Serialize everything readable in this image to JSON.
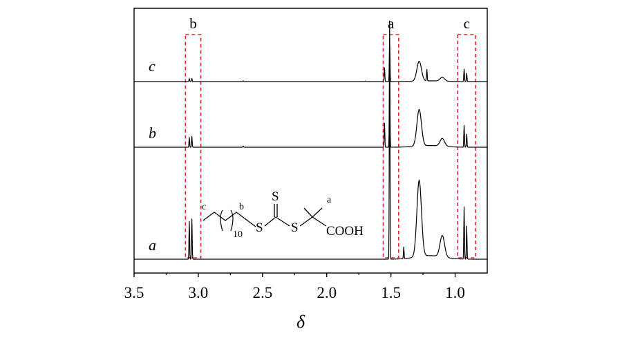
{
  "chart_data": {
    "type": "line",
    "xlabel": "δ",
    "ylabel": "",
    "xlim": [
      3.5,
      0.75
    ],
    "x_reversed": true,
    "xticks": [
      3.5,
      3.0,
      2.5,
      2.0,
      1.5,
      1.0
    ],
    "xtick_labels": [
      "3.5",
      "3.0",
      "2.5",
      "2.0",
      "1.5",
      "1.0"
    ],
    "grid": false,
    "highlight_regions": [
      {
        "label": "b",
        "range": [
          3.1,
          2.98
        ],
        "color": "#e8212b"
      },
      {
        "label": "a",
        "range": [
          1.56,
          1.44
        ],
        "color": "#e8212b"
      },
      {
        "label": "c",
        "range": [
          0.98,
          0.84
        ],
        "color": "#e8212b"
      }
    ],
    "series": [
      {
        "name": "c",
        "peaks": [
          {
            "x": 3.07,
            "h": 0.06
          },
          {
            "x": 3.05,
            "h": 0.07
          },
          {
            "x": 2.65,
            "h": 0.015
          },
          {
            "x": 1.7,
            "h": 0.01
          },
          {
            "x": 1.55,
            "h": 0.3
          },
          {
            "x": 1.51,
            "h": 0.95
          },
          {
            "x": 1.28,
            "h": 0.42,
            "broad": true
          },
          {
            "x": 1.22,
            "h": 0.25
          },
          {
            "x": 1.1,
            "h": 0.08,
            "broad": true
          },
          {
            "x": 0.93,
            "h": 0.27
          },
          {
            "x": 0.91,
            "h": 0.18
          }
        ]
      },
      {
        "name": "b",
        "peaks": [
          {
            "x": 3.07,
            "h": 0.09
          },
          {
            "x": 3.05,
            "h": 0.1
          },
          {
            "x": 2.65,
            "h": 0.01
          },
          {
            "x": 1.55,
            "h": 0.22
          },
          {
            "x": 1.51,
            "h": 0.75
          },
          {
            "x": 1.28,
            "h": 0.33,
            "broad": true
          },
          {
            "x": 1.1,
            "h": 0.07,
            "broad": true
          },
          {
            "x": 0.93,
            "h": 0.2
          },
          {
            "x": 0.91,
            "h": 0.12
          }
        ]
      },
      {
        "name": "a",
        "peaks": [
          {
            "x": 3.07,
            "h": 0.16
          },
          {
            "x": 3.05,
            "h": 0.17
          },
          {
            "x": 1.51,
            "h": 1.0
          },
          {
            "x": 1.4,
            "h": 0.05
          },
          {
            "x": 1.28,
            "h": 0.32,
            "broad": true
          },
          {
            "x": 1.1,
            "h": 0.09,
            "broad": true
          },
          {
            "x": 0.93,
            "h": 0.22
          },
          {
            "x": 0.91,
            "h": 0.14
          }
        ]
      }
    ],
    "structure": {
      "atom_labels": {
        "a": "a",
        "b": "b",
        "c": "c"
      },
      "subscript": "10",
      "sulfur": "S",
      "end_group": "COOH"
    }
  }
}
